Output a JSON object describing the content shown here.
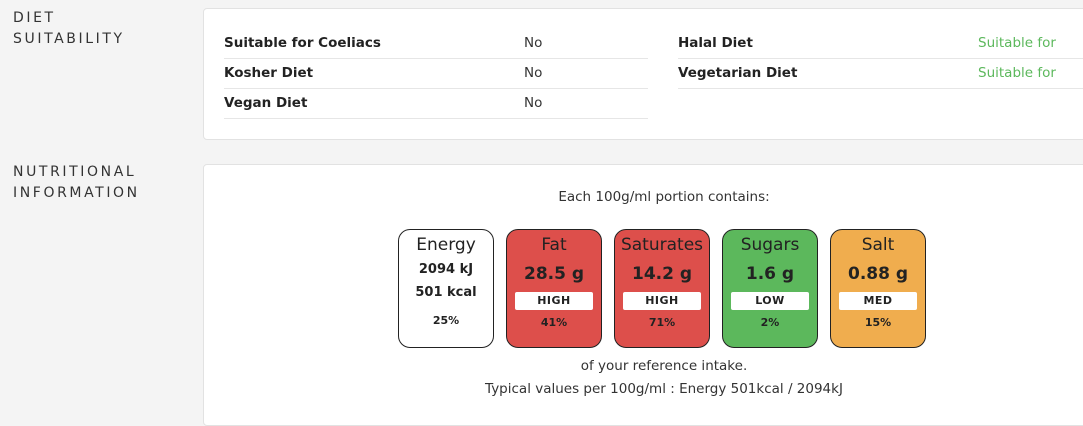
{
  "diet": {
    "section_label_line1": "DIET",
    "section_label_line2": "SUITABILITY",
    "items": [
      {
        "name": "Suitable for Coeliacs",
        "value": "No"
      },
      {
        "name": "Kosher Diet",
        "value": "No"
      },
      {
        "name": "Vegan Diet",
        "value": "No"
      },
      {
        "name": "Halal Diet",
        "value": "Suitable for"
      },
      {
        "name": "Vegetarian Diet",
        "value": "Suitable for"
      }
    ]
  },
  "nutrition": {
    "section_label_line1": "NUTRITIONAL",
    "section_label_line2": "INFORMATION",
    "intro": "Each 100g/ml portion contains:",
    "energy": {
      "label": "Energy",
      "kj": "2094 kJ",
      "kcal": "501 kcal",
      "percent": "25%"
    },
    "nutrients": [
      {
        "label": "Fat",
        "amount": "28.5 g",
        "level": "HIGH",
        "percent": "41%",
        "color": "#dd4f4b"
      },
      {
        "label": "Saturates",
        "amount": "14.2 g",
        "level": "HIGH",
        "percent": "71%",
        "color": "#dd4f4b"
      },
      {
        "label": "Sugars",
        "amount": "1.6 g",
        "level": "LOW",
        "percent": "2%",
        "color": "#5cb85c"
      },
      {
        "label": "Salt",
        "amount": "0.88 g",
        "level": "MED",
        "percent": "15%",
        "color": "#f0ad4e"
      }
    ],
    "reference_text": "of your reference intake.",
    "typical_values": "Typical values per 100g/ml : Energy 501kcal / 2094kJ"
  }
}
